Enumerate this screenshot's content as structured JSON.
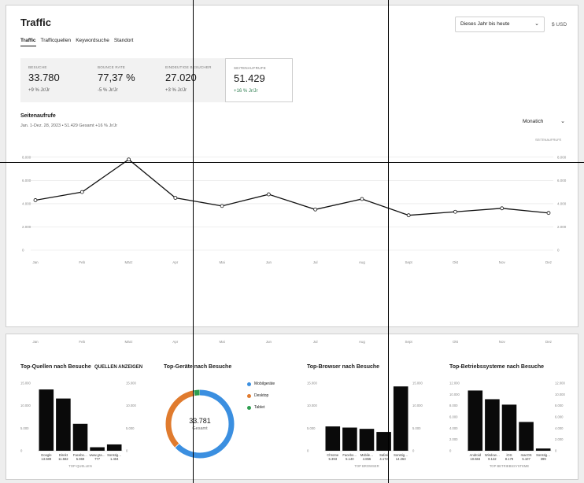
{
  "page_title": "Traffic",
  "tabs": [
    {
      "label": "Traffic",
      "active": true
    },
    {
      "label": "Trafficquellen",
      "active": false
    },
    {
      "label": "Keywordsuche",
      "active": false
    },
    {
      "label": "Standort",
      "active": false
    }
  ],
  "date_range": {
    "value": "Dieses Jahr bis heute",
    "icon": "chevron-down-icon"
  },
  "currency": "$ USD",
  "kpis": [
    {
      "label": "BESUCHE",
      "value": "33.780",
      "change": "+9 % Jr/Jr"
    },
    {
      "label": "BOUNCE RATE",
      "value": "77,37 %",
      "change": "-5 % Jr/Jr"
    },
    {
      "label": "EINDEUTIGE BESUCHER",
      "value": "27.020",
      "change": "+3 % Jr/Jr"
    },
    {
      "label": "SEITENAUFRUFE",
      "value": "51.429",
      "change": "+16 % Jr/Jr"
    }
  ],
  "pageviews": {
    "title": "Seitenaufrufe",
    "subtitle": "Jan. 1-Dez. 28, 2023 • 51.429 Gesamt +16 % Jr/Jr",
    "interval": "Monatich",
    "series_label": "SEITENAUFRUFE"
  },
  "bottom_axis_months": [
    "Jan",
    "Feb",
    "März",
    "Apr",
    "Mai",
    "Jun",
    "Jul",
    "Aug",
    "Sept",
    "Okt",
    "Nov",
    "Dez"
  ],
  "cards": {
    "sources": {
      "title": "Top-Quellen nach Besuche",
      "link": "QUELLEN ANZEIGEN",
      "xlabel": "TOP-QUELLEN"
    },
    "devices": {
      "title": "Top-Geräte nach Besuche",
      "total": "33.781",
      "total_label": "Gesamt"
    },
    "browsers": {
      "title": "Top-Browser nach Besuche",
      "xlabel": "TOP BROWSER"
    },
    "os": {
      "title": "Top-Betriebssysteme nach Besuche",
      "xlabel": "TOP BETRIEBSSYSTEME"
    }
  },
  "colors": {
    "mobile": "#3b8fe0",
    "desktop": "#e07b2e",
    "tablet": "#2e9e4f",
    "bar": "#0a0a0a",
    "line": "#111111"
  },
  "chart_data": [
    {
      "type": "line",
      "title": "Seitenaufrufe",
      "x": [
        "Jan",
        "Feb",
        "März",
        "Apr",
        "Mai",
        "Jun",
        "Jul",
        "Aug",
        "Sept",
        "Okt",
        "Nov",
        "Dez"
      ],
      "series": [
        {
          "name": "SEITENAUFRUFE",
          "values": [
            4300,
            5000,
            7800,
            4500,
            3800,
            4800,
            3500,
            4400,
            3000,
            3300,
            3600,
            3200
          ]
        }
      ],
      "yticks": [
        "0",
        "2.000",
        "4.000",
        "6.000",
        "8.000"
      ],
      "ylim": [
        0,
        9000
      ],
      "grid": true
    },
    {
      "type": "bar",
      "title": "Top-Quellen nach Besuche",
      "categories": [
        "Google",
        "Direkt",
        "Facebo…",
        "www.gra…",
        "Sonstig…"
      ],
      "values_labels": [
        "13.589",
        "11.582",
        "5.969",
        "777",
        "1.404"
      ],
      "values": [
        13589,
        11582,
        5969,
        777,
        1404
      ],
      "yticks": [
        "0",
        "5.000",
        "10.000",
        "15.000"
      ],
      "ylim": [
        0,
        15000
      ]
    },
    {
      "type": "pie",
      "title": "Top-Geräte nach Besuche",
      "categories": [
        "Mobilgeräte",
        "Desktop",
        "Tablet"
      ],
      "values": [
        63,
        34,
        3
      ]
    },
    {
      "type": "bar",
      "title": "Top-Browser nach Besuche",
      "categories": [
        "Chrome",
        "Facebo…",
        "Mobile…",
        "Safari",
        "Sonstig…"
      ],
      "values_labels": [
        "5.393",
        "5.140",
        "4.856",
        "4.172",
        "14.263"
      ],
      "values": [
        5393,
        5140,
        4856,
        4172,
        14263
      ],
      "yticks": [
        "0",
        "5.000",
        "10.000",
        "15.000"
      ],
      "ylim": [
        0,
        15000
      ]
    },
    {
      "type": "bar",
      "title": "Top-Betriebssysteme nach Besuche",
      "categories": [
        "Android",
        "Window…",
        "iOS",
        "macOS",
        "Sonstig…"
      ],
      "values_labels": [
        "10.684",
        "9.142",
        "8.179",
        "5.107",
        "399"
      ],
      "values": [
        10684,
        9142,
        8179,
        5107,
        399
      ],
      "yticks": [
        "0",
        "2.000",
        "4.000",
        "6.000",
        "8.000",
        "10.000",
        "12.000"
      ],
      "ylim": [
        0,
        12000
      ]
    }
  ]
}
